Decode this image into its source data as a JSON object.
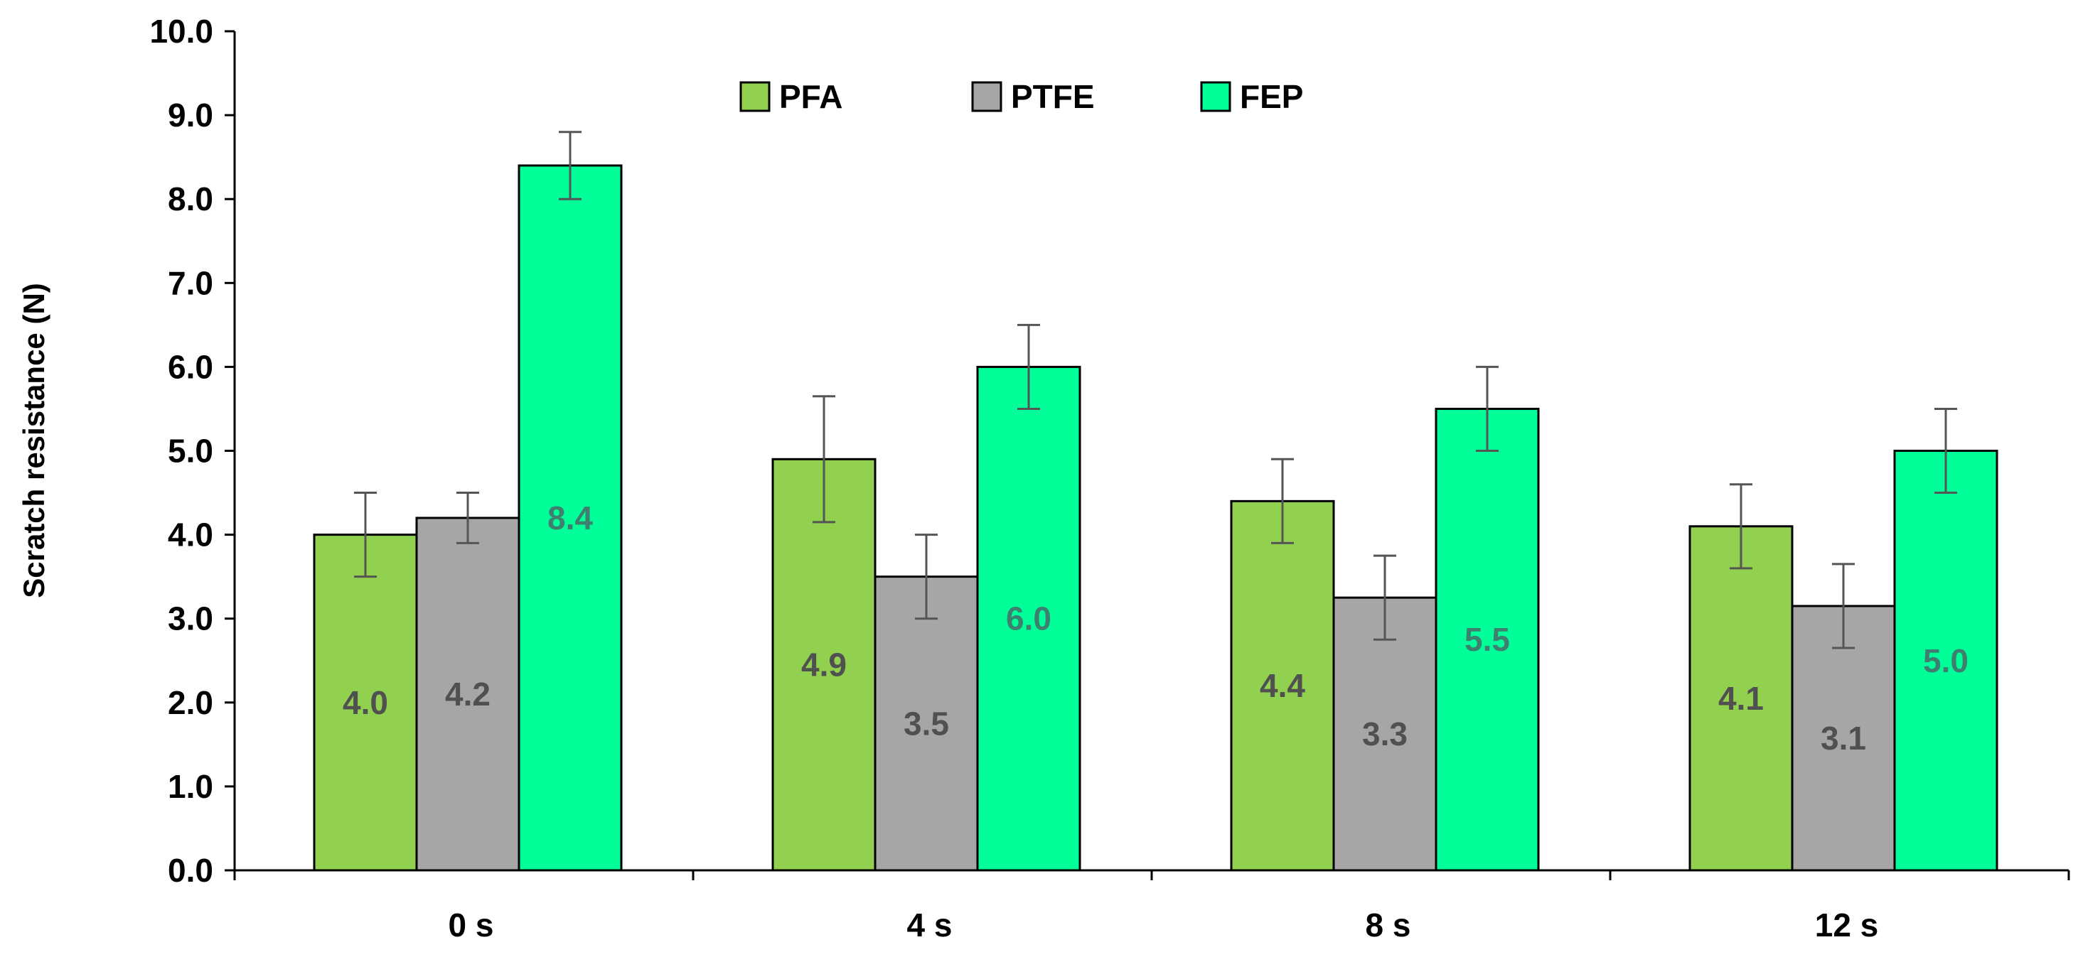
{
  "chart_data": {
    "type": "bar",
    "title": "",
    "xlabel": "",
    "ylabel": "Scratch resistance (N)",
    "ylim": [
      0,
      10
    ],
    "ytick_step": 1,
    "ytick_labels": [
      "0.0",
      "1.0",
      "2.0",
      "3.0",
      "4.0",
      "5.0",
      "6.0",
      "7.0",
      "8.0",
      "9.0",
      "10.0"
    ],
    "categories": [
      "0 s",
      "4 s",
      "8 s",
      "12 s"
    ],
    "grid": false,
    "legend_position": "top-center",
    "series": [
      {
        "name": "PFA",
        "color": "#92d050",
        "values": [
          4.0,
          4.9,
          4.4,
          4.1
        ],
        "labels": [
          "4.0",
          "4.9",
          "4.4",
          "4.1"
        ],
        "errors": [
          0.5,
          0.75,
          0.5,
          0.5
        ],
        "label_color": "#505050"
      },
      {
        "name": "PTFE",
        "color": "#a6a6a6",
        "values": [
          4.2,
          3.5,
          3.25,
          3.15
        ],
        "labels": [
          "4.2",
          "3.5",
          "3.3",
          "3.1"
        ],
        "errors": [
          0.3,
          0.5,
          0.5,
          0.5
        ],
        "label_color": "#505050"
      },
      {
        "name": "FEP",
        "color": "#00ff99",
        "values": [
          8.4,
          6.0,
          5.5,
          5.0
        ],
        "labels": [
          "8.4",
          "6.0",
          "5.5",
          "5.0"
        ],
        "errors": [
          0.4,
          0.5,
          0.5,
          0.5
        ],
        "label_color": "#3f7f6f"
      }
    ]
  }
}
